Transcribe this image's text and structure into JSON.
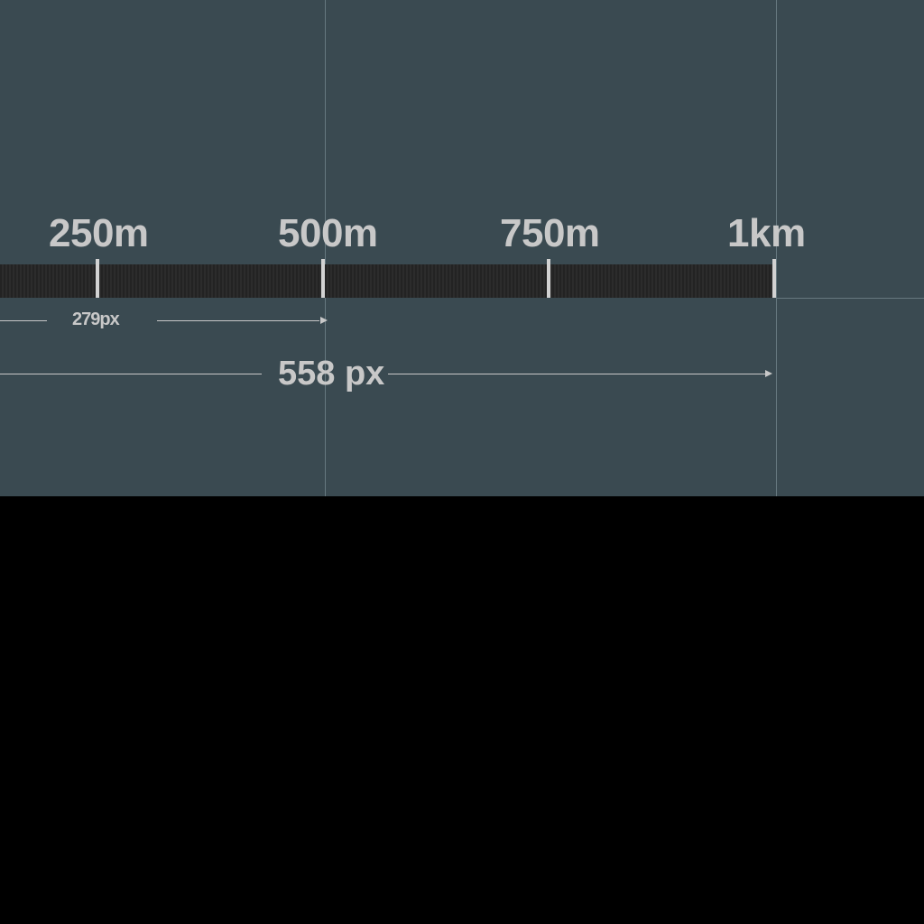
{
  "scale_bar": {
    "labels": [
      "250m",
      "500m",
      "750m",
      "1km"
    ]
  },
  "measurements": {
    "short": "279px",
    "long": "558 px"
  },
  "colors": {
    "panel_background": "#3a4a51",
    "bar": "#262626",
    "text": "#c8c8c8",
    "guide": "#66787f",
    "outside": "#000000"
  }
}
